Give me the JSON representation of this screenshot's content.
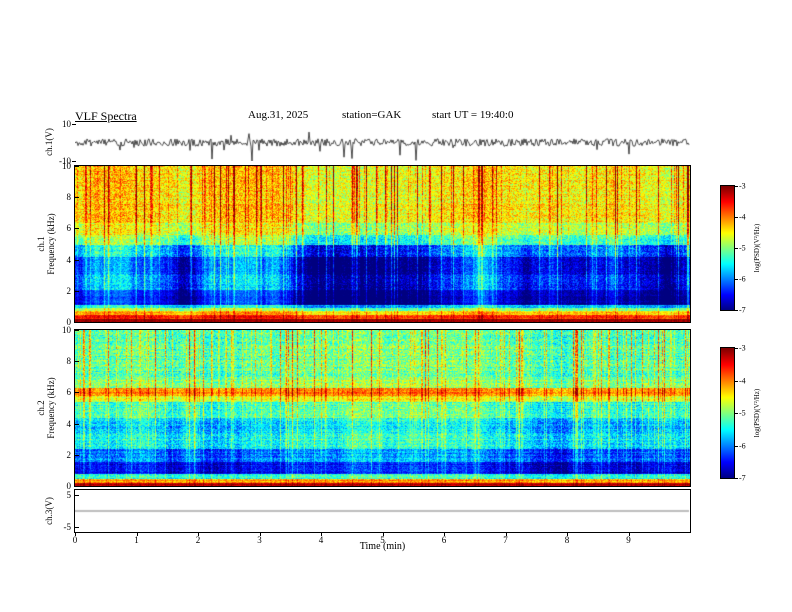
{
  "header": {
    "title": "VLF Spectra",
    "date": "Aug.31, 2025",
    "station": "station=GAK",
    "start_ut": "start UT =  19:40:0"
  },
  "colors": {
    "background": "#ffffff",
    "axis": "#000000",
    "colormap": "jet",
    "ch3_trace": "#444444"
  },
  "axes": {
    "x": {
      "label": "Time (min)",
      "min": 0,
      "max": 10,
      "ticks": [
        "0",
        "1",
        "2",
        "3",
        "4",
        "5",
        "6",
        "7",
        "8",
        "9"
      ]
    },
    "wave1": {
      "ylabel": "ch.1(V)",
      "ymin": -10,
      "ymax": 10,
      "ticks": [
        "10",
        "-10"
      ]
    },
    "spec1": {
      "ylabel_ch": "ch.1",
      "ylabel_freq": "Frequency (kHz)",
      "ymin": 0,
      "ymax": 10,
      "ticks": [
        "10",
        "8",
        "6",
        "4",
        "2",
        "0"
      ]
    },
    "spec2": {
      "ylabel_ch": "ch.2",
      "ylabel_freq": "Frequency (kHz)",
      "ymin": 0,
      "ymax": 10,
      "ticks": [
        "10",
        "8",
        "6",
        "4",
        "2",
        "0"
      ]
    },
    "wave3": {
      "ylabel": "ch.3(V)",
      "ymin": -6.5,
      "ymax": 6.5,
      "ticks": [
        "5",
        "-5"
      ]
    },
    "colorbar": {
      "label": "log(PSD)(V²/Hz)",
      "ticks": [
        "-3",
        "-4",
        "-5",
        "-6",
        "-7"
      ],
      "vmax": -3,
      "vmin": -7
    }
  },
  "chart_data": [
    {
      "name": "ch1_waveform",
      "type": "line",
      "ylabel": "ch.1(V)",
      "xlabel": "Time (min)",
      "ylim": [
        -10,
        10
      ],
      "xlim": [
        0,
        10
      ],
      "summary": "continuous broadband noise of roughly ±2 V about 0 V with frequent impulsive sferic spikes reaching about -9 V and occasional positive spikes near +5 V",
      "noise_amp": 2.0,
      "spike_prob": 0.028,
      "spike_base": 2.5,
      "spike_extra": 6,
      "up_prob": 0.006,
      "seed": 11
    },
    {
      "name": "ch1_spectrogram",
      "type": "heatmap",
      "ylabel": "Frequency (kHz)",
      "xlim": [
        0,
        10
      ],
      "ylim": [
        0,
        10
      ],
      "fmax": 10,
      "value_range": [
        -7,
        -3
      ],
      "units": "log(PSD)(V²/Hz)",
      "summary": "intense red band below 0.3 kHz, orange-yellow 0.3-0.7 kHz, very dark blue/black 1-5 kHz with patchy structure, green above 5 kHz crossed by dense red/yellow vertical sferic streaks",
      "band_format": "[f_lo_kHz, f_hi_kHz, log_psd, noise, patchiness]",
      "bands": [
        [
          0.0,
          0.25,
          -3.15,
          0.12,
          0.0
        ],
        [
          0.25,
          0.5,
          -3.7,
          0.25,
          0.2
        ],
        [
          0.5,
          0.75,
          -4.3,
          0.3,
          0.3
        ],
        [
          0.75,
          0.95,
          -5.0,
          0.3,
          0.4
        ],
        [
          0.95,
          1.15,
          -5.7,
          0.3,
          0.5
        ],
        [
          1.15,
          2.1,
          -6.75,
          0.22,
          0.8
        ],
        [
          2.1,
          3.1,
          -6.35,
          0.35,
          1.0
        ],
        [
          3.1,
          4.2,
          -6.55,
          0.3,
          1.0
        ],
        [
          4.2,
          5.0,
          -6.0,
          0.4,
          0.9
        ],
        [
          5.0,
          5.6,
          -5.2,
          0.4,
          0.6
        ],
        [
          5.6,
          6.4,
          -4.75,
          0.42,
          0.4
        ],
        [
          6.4,
          10.01,
          -4.45,
          0.45,
          0.3
        ]
      ],
      "streak_density": 0.3,
      "streak_max": 1.9,
      "row_jitter": 0.1,
      "seed": 22
    },
    {
      "name": "ch2_spectrogram",
      "type": "heatmap",
      "ylabel": "Frequency (kHz)",
      "xlim": [
        0,
        10
      ],
      "ylim": [
        0,
        10
      ],
      "fmax": 10,
      "value_range": [
        -7,
        -3
      ],
      "units": "log(PSD)(V²/Hz)",
      "summary": "red band below 0.3 kHz, dark blue 0.8-2.4 kHz, cyan-blue mid frequencies, bright yellow-green band near 6 kHz, cyan-green above 6.3 kHz with dense vertical sferic streaks and horizontal striping",
      "band_format": "[f_lo_kHz, f_hi_kHz, log_psd, noise, patchiness]",
      "bands": [
        [
          0.0,
          0.25,
          -3.3,
          0.15,
          0.0
        ],
        [
          0.25,
          0.5,
          -4.1,
          0.3,
          0.2
        ],
        [
          0.5,
          0.8,
          -5.3,
          0.35,
          0.4
        ],
        [
          0.8,
          1.6,
          -6.5,
          0.28,
          0.7
        ],
        [
          1.6,
          2.4,
          -6.0,
          0.35,
          0.8
        ],
        [
          2.4,
          3.4,
          -5.35,
          0.4,
          0.7
        ],
        [
          3.4,
          4.4,
          -5.6,
          0.38,
          0.7
        ],
        [
          4.4,
          5.4,
          -5.2,
          0.4,
          0.6
        ],
        [
          5.4,
          5.8,
          -4.6,
          0.35,
          0.4
        ],
        [
          5.8,
          6.3,
          -4.05,
          0.3,
          0.3
        ],
        [
          6.3,
          7.0,
          -4.9,
          0.4,
          0.4
        ],
        [
          7.0,
          10.01,
          -5.1,
          0.45,
          0.4
        ]
      ],
      "streak_density": 0.34,
      "streak_max": 1.5,
      "row_jitter": 0.16,
      "seed": 33
    },
    {
      "name": "ch3_waveform",
      "type": "line",
      "ylabel": "ch.3(V)",
      "xlabel": "Time (min)",
      "ylim": [
        -6.5,
        6.5
      ],
      "xlim": [
        0,
        10
      ],
      "summary": "flat trace at 0 V (channel inactive)",
      "noise_amp": 0.0,
      "spike_prob": 0,
      "spike_base": 0,
      "spike_extra": 0,
      "up_prob": 0,
      "color": "#444444",
      "seed": 44
    }
  ]
}
